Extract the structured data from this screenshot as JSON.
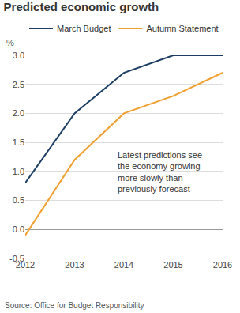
{
  "chart_data": {
    "type": "line",
    "title": "Predicted economic growth",
    "y_label": "%",
    "x": [
      2012,
      2013,
      2014,
      2015,
      2016
    ],
    "series": [
      {
        "name": "March Budget",
        "color": "#1c3d63",
        "values": [
          0.8,
          2.0,
          2.7,
          3.0,
          3.0
        ]
      },
      {
        "name": "Autumn Statement",
        "color": "#f0a030",
        "values": [
          -0.1,
          1.2,
          2.0,
          2.3,
          2.7
        ]
      }
    ],
    "xlim": [
      2012,
      2016
    ],
    "xticks": [
      2012,
      2013,
      2014,
      2015,
      2016
    ],
    "ylim": [
      -0.5,
      3.0
    ],
    "yticks": [
      -0.5,
      {
        "value": 0,
        "label": "0.0"
      },
      0.5,
      {
        "value": 1,
        "label": "1.0"
      },
      1.5,
      {
        "value": 2,
        "label": "2.0"
      },
      2.5,
      {
        "value": 3,
        "label": "3.0"
      }
    ],
    "grid": true,
    "legend": "top-left",
    "annotation": [
      "Latest predictions see",
      "the economy growing",
      "more slowly than",
      "previously forecast"
    ],
    "source": "Source: Office for Budget Responsibility"
  }
}
